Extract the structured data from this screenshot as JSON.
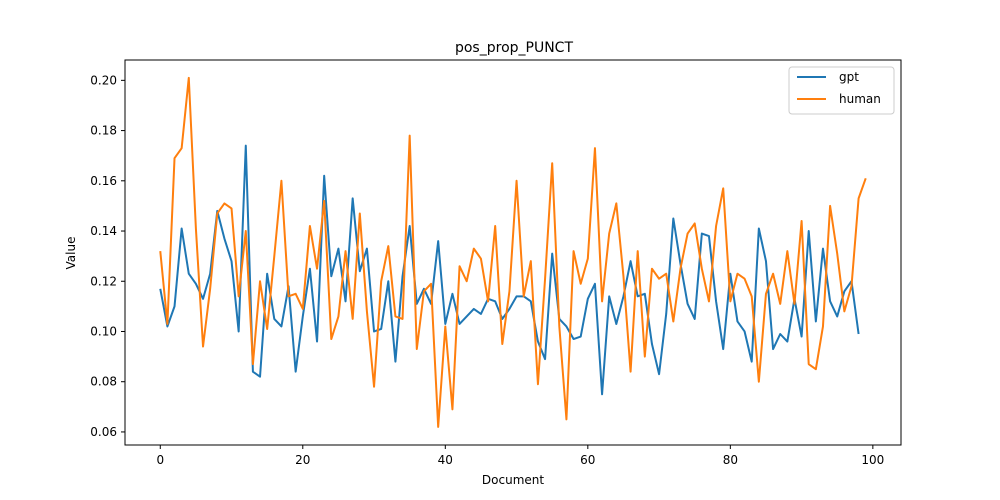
{
  "chart_data": {
    "type": "line",
    "title": "pos_prop_PUNCT",
    "xlabel": "Document",
    "ylabel": "Value",
    "xlim": [
      -4.95,
      103.95
    ],
    "ylim": [
      0.0548,
      0.2081
    ],
    "xticks": [
      0,
      20,
      40,
      60,
      80,
      100
    ],
    "yticks": [
      0.06,
      0.08,
      0.1,
      0.12,
      0.14,
      0.16,
      0.18,
      0.2
    ],
    "grid": false,
    "legend_position": "top-right",
    "series": [
      {
        "name": "gpt",
        "color": "#1f77b4",
        "values": [
          0.117,
          0.102,
          0.11,
          0.141,
          0.123,
          0.119,
          0.113,
          0.123,
          0.148,
          0.137,
          0.128,
          0.1,
          0.174,
          0.084,
          0.082,
          0.123,
          0.105,
          0.102,
          0.118,
          0.084,
          0.106,
          0.125,
          0.096,
          0.162,
          0.122,
          0.133,
          0.112,
          0.153,
          0.124,
          0.133,
          0.1,
          0.101,
          0.12,
          0.088,
          0.122,
          0.142,
          0.111,
          0.117,
          0.111,
          0.136,
          0.103,
          0.115,
          0.103,
          0.106,
          0.109,
          0.107,
          0.113,
          0.112,
          0.105,
          0.109,
          0.114,
          0.114,
          0.112,
          0.096,
          0.089,
          0.131,
          0.105,
          0.102,
          0.097,
          0.098,
          0.113,
          0.119,
          0.075,
          0.114,
          0.103,
          0.114,
          0.128,
          0.114,
          0.115,
          0.095,
          0.083,
          0.107,
          0.145,
          0.127,
          0.111,
          0.105,
          0.139,
          0.138,
          0.112,
          0.093,
          0.123,
          0.104,
          0.1,
          0.088,
          0.141,
          0.128,
          0.093,
          0.099,
          0.096,
          0.113,
          0.098,
          0.14,
          0.104,
          0.133,
          0.112,
          0.106,
          0.116,
          0.12,
          0.099
        ]
      },
      {
        "name": "human",
        "color": "#ff7f0e",
        "values": [
          0.132,
          0.103,
          0.169,
          0.173,
          0.201,
          0.141,
          0.094,
          0.117,
          0.147,
          0.151,
          0.149,
          0.114,
          0.14,
          0.087,
          0.12,
          0.101,
          0.13,
          0.16,
          0.114,
          0.115,
          0.109,
          0.142,
          0.125,
          0.152,
          0.097,
          0.106,
          0.132,
          0.105,
          0.147,
          0.108,
          0.078,
          0.12,
          0.134,
          0.106,
          0.105,
          0.178,
          0.093,
          0.116,
          0.119,
          0.062,
          0.102,
          0.069,
          0.126,
          0.12,
          0.133,
          0.129,
          0.112,
          0.142,
          0.095,
          0.116,
          0.16,
          0.114,
          0.128,
          0.079,
          0.121,
          0.167,
          0.102,
          0.065,
          0.132,
          0.119,
          0.129,
          0.173,
          0.112,
          0.139,
          0.151,
          0.122,
          0.084,
          0.132,
          0.09,
          0.125,
          0.121,
          0.123,
          0.104,
          0.125,
          0.139,
          0.143,
          0.125,
          0.112,
          0.142,
          0.157,
          0.112,
          0.123,
          0.121,
          0.114,
          0.08,
          0.115,
          0.123,
          0.111,
          0.132,
          0.111,
          0.144,
          0.087,
          0.085,
          0.102,
          0.15,
          0.131,
          0.108,
          0.118,
          0.153,
          0.161
        ]
      }
    ]
  }
}
